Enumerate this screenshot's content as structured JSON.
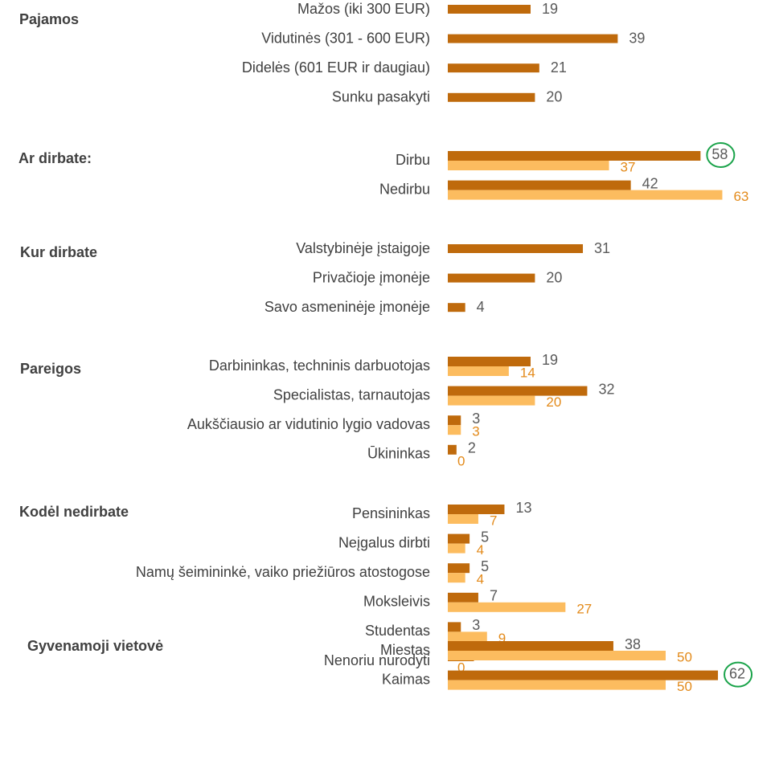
{
  "chart_data": [
    {
      "type": "bar",
      "title": "Pajamos",
      "categories": [
        "Mažos (iki 300 EUR)",
        "Vidutinės (301 - 600 EUR)",
        "Didelės (601 EUR ir daugiau)",
        "Sunku pasakyti"
      ],
      "series": [
        {
          "color": "#bf6a0c",
          "values": [
            19,
            39,
            21,
            20
          ]
        }
      ]
    },
    {
      "type": "bar",
      "title": "Ar dirbate:",
      "categories": [
        "Dirbu",
        "Nedirbu"
      ],
      "series": [
        {
          "color": "#bf6a0c",
          "values": [
            58,
            42
          ]
        },
        {
          "color": "#fcbc5f",
          "values": [
            37,
            63
          ]
        }
      ],
      "circled": [
        0
      ]
    },
    {
      "type": "bar",
      "title": "Kur dirbate",
      "categories": [
        "Valstybinėje įstaigoje",
        "Privačioje įmonėje",
        "Savo asmeninėje įmonėje"
      ],
      "series": [
        {
          "color": "#bf6a0c",
          "values": [
            31,
            20,
            4
          ]
        }
      ]
    },
    {
      "type": "bar",
      "title": "Pareigos",
      "categories": [
        "Darbininkas, techninis darbuotojas",
        "Specialistas, tarnautojas",
        "Aukščiausio ar vidutinio lygio vadovas",
        "Ūkininkas"
      ],
      "series": [
        {
          "color": "#bf6a0c",
          "values": [
            19,
            32,
            3,
            2
          ]
        },
        {
          "color": "#fcbc5f",
          "values": [
            14,
            20,
            3,
            0
          ]
        }
      ]
    },
    {
      "type": "bar",
      "title": "Kodėl nedirbate",
      "categories": [
        "Pensininkas",
        "Neįgalus dirbti",
        "Namų šeimininkė, vaiko priežiūros atostogose",
        "Moksleivis",
        "Studentas",
        "Nenoriu nurodyti"
      ],
      "series": [
        {
          "color": "#bf6a0c",
          "values": [
            13,
            5,
            5,
            7,
            3,
            6
          ]
        },
        {
          "color": "#fcbc5f",
          "values": [
            7,
            4,
            4,
            27,
            9,
            0
          ]
        }
      ]
    },
    {
      "type": "bar",
      "title": "Gyvenamoji vietovė",
      "categories": [
        "Miestas",
        "Kaimas"
      ],
      "series": [
        {
          "color": "#bf6a0c",
          "values": [
            38,
            62
          ]
        },
        {
          "color": "#fcbc5f",
          "values": [
            50,
            50
          ]
        }
      ],
      "circled": [
        1
      ]
    }
  ]
}
